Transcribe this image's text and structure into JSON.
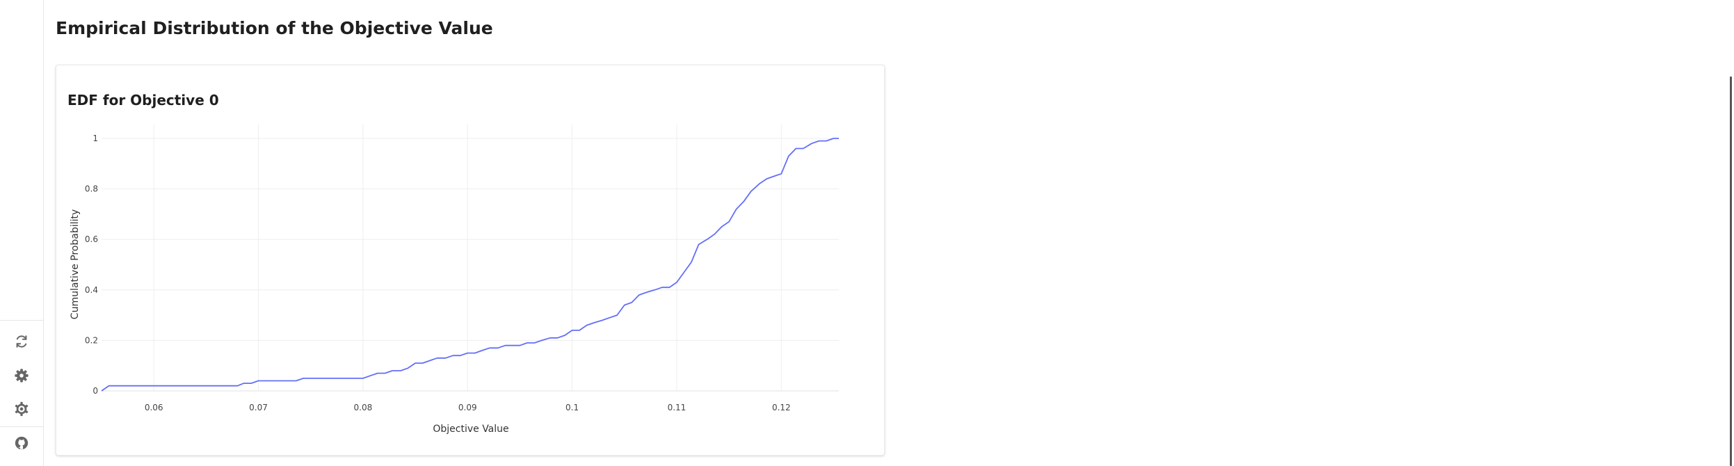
{
  "page": {
    "title": "Empirical Distribution of the Objective Value"
  },
  "sidebar": {
    "buttons": [
      {
        "name": "refresh-icon"
      },
      {
        "name": "gear-icon"
      },
      {
        "name": "settings-cog-icon"
      },
      {
        "name": "github-icon"
      }
    ]
  },
  "chart_data": {
    "type": "line",
    "title": "EDF for Objective 0",
    "xlabel": "Objective Value",
    "ylabel": "Cumulative Probability",
    "xlim": [
      0.055,
      0.1255
    ],
    "ylim": [
      0,
      1
    ],
    "x_ticks": [
      0.06,
      0.07,
      0.08,
      0.09,
      0.1,
      0.11,
      0.12
    ],
    "x_tick_labels": [
      "0.06",
      "0.07",
      "0.08",
      "0.09",
      "0.1",
      "0.11",
      "0.12"
    ],
    "y_ticks": [
      0,
      0.2,
      0.4,
      0.6,
      0.8,
      1
    ],
    "y_tick_labels": [
      "0",
      "0.2",
      "0.4",
      "0.6",
      "0.8",
      "1"
    ],
    "grid": true,
    "line_color": "#636efa",
    "series": [
      {
        "x": [
          0.055,
          0.0557,
          0.068,
          0.0686,
          0.0693,
          0.07,
          0.0736,
          0.0743,
          0.08,
          0.0807,
          0.0814,
          0.0821,
          0.0828,
          0.0836,
          0.0843,
          0.085,
          0.0857,
          0.0864,
          0.0871,
          0.0879,
          0.0886,
          0.0893,
          0.09,
          0.0907,
          0.0914,
          0.0921,
          0.0929,
          0.0936,
          0.0943,
          0.095,
          0.0957,
          0.0964,
          0.0971,
          0.0979,
          0.0986,
          0.0993,
          0.1,
          0.1007,
          0.1014,
          0.1021,
          0.1029,
          0.1036,
          0.1043,
          0.105,
          0.1057,
          0.1064,
          0.1071,
          0.1079,
          0.1086,
          0.1093,
          0.11,
          0.1107,
          0.1114,
          0.1121,
          0.1129,
          0.1136,
          0.1143,
          0.115,
          0.1157,
          0.1164,
          0.1171,
          0.1179,
          0.1186,
          0.1193,
          0.12,
          0.1207,
          0.1214,
          0.1221,
          0.1229,
          0.1236,
          0.1243,
          0.125,
          0.1255
        ],
        "y": [
          0,
          0.02,
          0.02,
          0.03,
          0.03,
          0.04,
          0.04,
          0.05,
          0.05,
          0.06,
          0.07,
          0.07,
          0.08,
          0.08,
          0.09,
          0.11,
          0.11,
          0.12,
          0.13,
          0.13,
          0.14,
          0.14,
          0.15,
          0.15,
          0.16,
          0.17,
          0.17,
          0.18,
          0.18,
          0.18,
          0.19,
          0.19,
          0.2,
          0.21,
          0.21,
          0.22,
          0.24,
          0.24,
          0.26,
          0.27,
          0.28,
          0.29,
          0.3,
          0.34,
          0.35,
          0.38,
          0.39,
          0.4,
          0.41,
          0.41,
          0.43,
          0.47,
          0.51,
          0.58,
          0.6,
          0.62,
          0.65,
          0.67,
          0.72,
          0.75,
          0.79,
          0.82,
          0.84,
          0.85,
          0.86,
          0.93,
          0.96,
          0.96,
          0.98,
          0.99,
          0.99,
          1.0,
          1.0
        ]
      }
    ]
  }
}
